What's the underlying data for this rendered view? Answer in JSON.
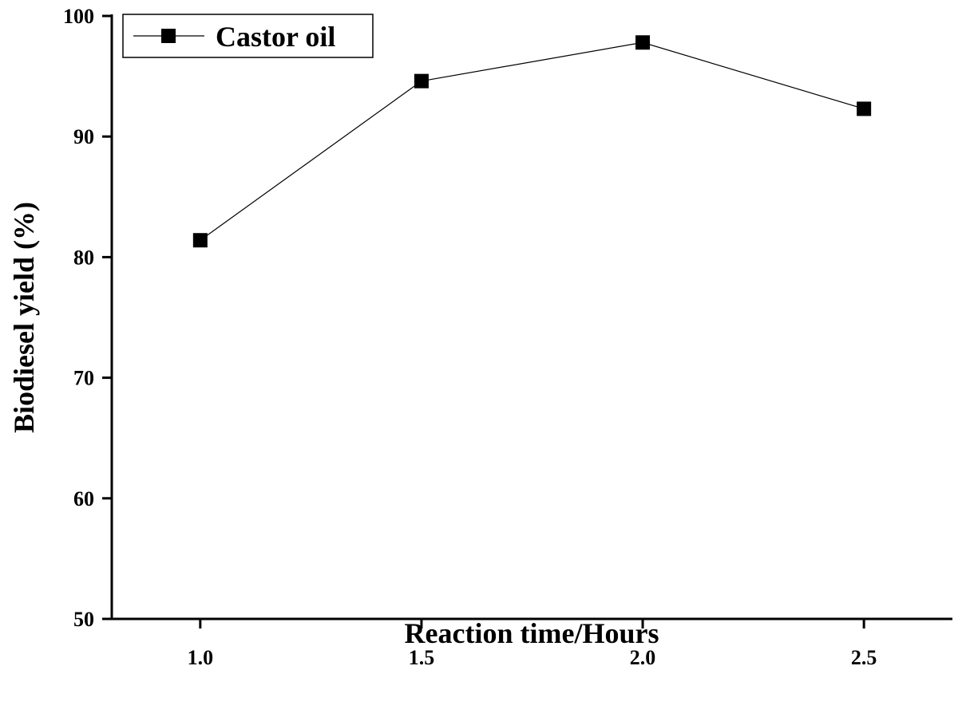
{
  "chart_data": {
    "type": "line",
    "xlabel": "Reaction time/Hours",
    "ylabel": "Biodiesel yield (%)",
    "xlim": [
      0.8,
      2.7
    ],
    "ylim": [
      50,
      100
    ],
    "x_ticks": [
      "1.0",
      "1.5",
      "2.0",
      "2.5"
    ],
    "y_ticks": [
      "50",
      "60",
      "70",
      "80",
      "90",
      "100"
    ],
    "grid": false,
    "legend_position": "top-left",
    "series": [
      {
        "name": "Castor oil",
        "marker": "square",
        "color": "#000000",
        "x": [
          1.0,
          1.5,
          2.0,
          2.5
        ],
        "y": [
          81.4,
          94.6,
          97.8,
          92.3
        ]
      }
    ]
  }
}
